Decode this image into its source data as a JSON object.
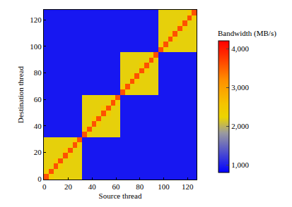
{
  "chart_data": {
    "type": "heatmap",
    "x_label": "Source thread",
    "y_label": "Destination thread",
    "x": [
      1.5,
      5.5,
      9.5,
      13.5,
      17.5,
      21.5,
      25.5,
      29.5,
      33.5,
      37.5,
      41.5,
      45.5,
      49.5,
      53.5,
      57.5,
      61.5,
      65.5,
      69.5,
      73.5,
      77.5,
      81.5,
      85.5,
      89.5,
      93.5,
      97.5,
      101.5,
      105.5,
      109.5,
      113.5,
      117.5,
      121.5,
      125.5
    ],
    "y": [
      1.5,
      5.5,
      9.5,
      13.5,
      17.5,
      21.5,
      25.5,
      29.5,
      33.5,
      37.5,
      41.5,
      45.5,
      49.5,
      53.5,
      57.5,
      61.5,
      65.5,
      69.5,
      73.5,
      77.5,
      81.5,
      85.5,
      89.5,
      93.5,
      97.5,
      101.5,
      105.5,
      109.5,
      113.5,
      117.5,
      121.5,
      125.5
    ],
    "xlim": [
      -0.5,
      127.5
    ],
    "ylim": [
      -0.5,
      127.5
    ],
    "xticks": [
      0,
      20,
      40,
      60,
      80,
      100,
      120
    ],
    "yticks": [
      0,
      20,
      40,
      60,
      80,
      100,
      120
    ],
    "colorbar": {
      "title": "Bandwidth (MB/s)",
      "range": [
        800,
        4200
      ],
      "ticks": [
        {
          "value": 1000,
          "label": "1,000"
        },
        {
          "value": 2000,
          "label": "2,000"
        },
        {
          "value": 3000,
          "label": "3,000"
        },
        {
          "value": 4000,
          "label": "4,000"
        }
      ]
    },
    "z": [
      [
        3600,
        2400,
        2200,
        2200,
        2200,
        2200,
        2200,
        2200,
        950,
        950,
        950,
        950,
        950,
        950,
        950,
        950,
        950,
        950,
        950,
        950,
        950,
        950,
        950,
        950,
        950,
        950,
        950,
        950,
        950,
        950,
        950,
        950
      ],
      [
        2400,
        3600,
        2200,
        2200,
        2200,
        2200,
        2200,
        2200,
        950,
        950,
        950,
        950,
        950,
        950,
        950,
        950,
        950,
        950,
        950,
        950,
        950,
        950,
        950,
        950,
        950,
        950,
        950,
        950,
        950,
        950,
        950,
        950
      ],
      [
        2200,
        2200,
        3600,
        2400,
        2200,
        2200,
        2200,
        2200,
        950,
        950,
        950,
        950,
        950,
        950,
        950,
        950,
        950,
        950,
        950,
        950,
        950,
        950,
        950,
        950,
        950,
        950,
        950,
        950,
        950,
        950,
        950,
        950
      ],
      [
        2200,
        2200,
        2400,
        3600,
        2200,
        2200,
        2200,
        2200,
        950,
        950,
        950,
        950,
        950,
        950,
        950,
        950,
        950,
        950,
        950,
        950,
        950,
        950,
        950,
        950,
        950,
        950,
        950,
        950,
        950,
        950,
        950,
        950
      ],
      [
        2200,
        2200,
        2200,
        2200,
        3600,
        2400,
        2200,
        2200,
        950,
        950,
        950,
        950,
        950,
        950,
        950,
        950,
        950,
        950,
        950,
        950,
        950,
        950,
        950,
        950,
        950,
        950,
        950,
        950,
        950,
        950,
        950,
        950
      ],
      [
        2200,
        2200,
        2200,
        2200,
        2400,
        3600,
        2200,
        2200,
        950,
        950,
        950,
        950,
        950,
        950,
        950,
        950,
        950,
        950,
        950,
        950,
        950,
        950,
        950,
        950,
        950,
        950,
        950,
        950,
        950,
        950,
        950,
        950
      ],
      [
        2200,
        2200,
        2200,
        2200,
        2200,
        2200,
        3600,
        2400,
        950,
        950,
        950,
        950,
        950,
        950,
        950,
        950,
        950,
        950,
        950,
        950,
        950,
        950,
        950,
        950,
        950,
        950,
        950,
        950,
        950,
        950,
        950,
        950
      ],
      [
        2200,
        2200,
        2200,
        2200,
        2200,
        2200,
        2400,
        3600,
        950,
        950,
        950,
        950,
        950,
        950,
        950,
        950,
        950,
        950,
        950,
        950,
        950,
        950,
        950,
        950,
        950,
        950,
        950,
        950,
        950,
        950,
        950,
        950
      ],
      [
        950,
        950,
        950,
        950,
        950,
        950,
        950,
        950,
        3600,
        2400,
        2200,
        2200,
        2200,
        2200,
        2200,
        2200,
        950,
        950,
        950,
        950,
        950,
        950,
        950,
        950,
        950,
        950,
        950,
        950,
        950,
        950,
        950,
        950
      ],
      [
        950,
        950,
        950,
        950,
        950,
        950,
        950,
        950,
        2400,
        3600,
        2200,
        2200,
        2200,
        2200,
        2200,
        2200,
        950,
        950,
        950,
        950,
        950,
        950,
        950,
        950,
        950,
        950,
        950,
        950,
        950,
        950,
        950,
        950
      ],
      [
        950,
        950,
        950,
        950,
        950,
        950,
        950,
        950,
        2200,
        2200,
        3600,
        2400,
        2200,
        2200,
        2200,
        2200,
        950,
        950,
        950,
        950,
        950,
        950,
        950,
        950,
        950,
        950,
        950,
        950,
        950,
        950,
        950,
        950
      ],
      [
        950,
        950,
        950,
        950,
        950,
        950,
        950,
        950,
        2200,
        2200,
        2400,
        3600,
        2200,
        2200,
        2200,
        2200,
        950,
        950,
        950,
        950,
        950,
        950,
        950,
        950,
        950,
        950,
        950,
        950,
        950,
        950,
        950,
        950
      ],
      [
        950,
        950,
        950,
        950,
        950,
        950,
        950,
        950,
        2200,
        2200,
        2200,
        2200,
        3600,
        2400,
        2200,
        2200,
        950,
        950,
        950,
        950,
        950,
        950,
        950,
        950,
        950,
        950,
        950,
        950,
        950,
        950,
        950,
        950
      ],
      [
        950,
        950,
        950,
        950,
        950,
        950,
        950,
        950,
        2200,
        2200,
        2200,
        2200,
        2400,
        3600,
        2200,
        2200,
        950,
        950,
        950,
        950,
        950,
        950,
        950,
        950,
        950,
        950,
        950,
        950,
        950,
        950,
        950,
        950
      ],
      [
        950,
        950,
        950,
        950,
        950,
        950,
        950,
        950,
        2200,
        2200,
        2200,
        2200,
        2200,
        2200,
        3600,
        2400,
        950,
        950,
        950,
        950,
        950,
        950,
        950,
        950,
        950,
        950,
        950,
        950,
        950,
        950,
        950,
        950
      ],
      [
        950,
        950,
        950,
        950,
        950,
        950,
        950,
        950,
        2200,
        2200,
        2200,
        2200,
        2200,
        2200,
        2400,
        3600,
        950,
        950,
        950,
        950,
        950,
        950,
        950,
        950,
        950,
        950,
        950,
        950,
        950,
        950,
        950,
        950
      ],
      [
        950,
        950,
        950,
        950,
        950,
        950,
        950,
        950,
        950,
        950,
        950,
        950,
        950,
        950,
        950,
        950,
        3600,
        2400,
        2200,
        2200,
        2200,
        2200,
        2200,
        2200,
        950,
        950,
        950,
        950,
        950,
        950,
        950,
        950
      ],
      [
        950,
        950,
        950,
        950,
        950,
        950,
        950,
        950,
        950,
        950,
        950,
        950,
        950,
        950,
        950,
        950,
        2400,
        3600,
        2200,
        2200,
        2200,
        2200,
        2200,
        2200,
        950,
        950,
        950,
        950,
        950,
        950,
        950,
        950
      ],
      [
        950,
        950,
        950,
        950,
        950,
        950,
        950,
        950,
        950,
        950,
        950,
        950,
        950,
        950,
        950,
        950,
        2200,
        2200,
        3600,
        2400,
        2200,
        2200,
        2200,
        2200,
        950,
        950,
        950,
        950,
        950,
        950,
        950,
        950
      ],
      [
        950,
        950,
        950,
        950,
        950,
        950,
        950,
        950,
        950,
        950,
        950,
        950,
        950,
        950,
        950,
        950,
        2200,
        2200,
        2400,
        3600,
        2200,
        2200,
        2200,
        2200,
        950,
        950,
        950,
        950,
        950,
        950,
        950,
        950
      ],
      [
        950,
        950,
        950,
        950,
        950,
        950,
        950,
        950,
        950,
        950,
        950,
        950,
        950,
        950,
        950,
        950,
        2200,
        2200,
        2200,
        2200,
        3600,
        2400,
        2200,
        2200,
        950,
        950,
        950,
        950,
        950,
        950,
        950,
        950
      ],
      [
        950,
        950,
        950,
        950,
        950,
        950,
        950,
        950,
        950,
        950,
        950,
        950,
        950,
        950,
        950,
        950,
        2200,
        2200,
        2200,
        2200,
        2400,
        3600,
        2200,
        2200,
        950,
        950,
        950,
        950,
        950,
        950,
        950,
        950
      ],
      [
        950,
        950,
        950,
        950,
        950,
        950,
        950,
        950,
        950,
        950,
        950,
        950,
        950,
        950,
        950,
        950,
        2200,
        2200,
        2200,
        2200,
        2200,
        2200,
        3600,
        2400,
        950,
        950,
        950,
        950,
        950,
        950,
        950,
        950
      ],
      [
        950,
        950,
        950,
        950,
        950,
        950,
        950,
        950,
        950,
        950,
        950,
        950,
        950,
        950,
        950,
        950,
        2200,
        2200,
        2200,
        2200,
        2200,
        2200,
        2400,
        3600,
        950,
        950,
        950,
        950,
        950,
        950,
        950,
        950
      ],
      [
        950,
        950,
        950,
        950,
        950,
        950,
        950,
        950,
        950,
        950,
        950,
        950,
        950,
        950,
        950,
        950,
        950,
        950,
        950,
        950,
        950,
        950,
        950,
        950,
        3600,
        2400,
        2200,
        2200,
        2200,
        2200,
        2200,
        2200
      ],
      [
        950,
        950,
        950,
        950,
        950,
        950,
        950,
        950,
        950,
        950,
        950,
        950,
        950,
        950,
        950,
        950,
        950,
        950,
        950,
        950,
        950,
        950,
        950,
        950,
        2400,
        3600,
        2200,
        2200,
        2200,
        2200,
        2200,
        2200
      ],
      [
        950,
        950,
        950,
        950,
        950,
        950,
        950,
        950,
        950,
        950,
        950,
        950,
        950,
        950,
        950,
        950,
        950,
        950,
        950,
        950,
        950,
        950,
        950,
        950,
        2200,
        2200,
        3600,
        2400,
        2200,
        2200,
        2200,
        2200
      ],
      [
        950,
        950,
        950,
        950,
        950,
        950,
        950,
        950,
        950,
        950,
        950,
        950,
        950,
        950,
        950,
        950,
        950,
        950,
        950,
        950,
        950,
        950,
        950,
        950,
        2200,
        2200,
        2400,
        3600,
        2200,
        2200,
        2200,
        2200
      ],
      [
        950,
        950,
        950,
        950,
        950,
        950,
        950,
        950,
        950,
        950,
        950,
        950,
        950,
        950,
        950,
        950,
        950,
        950,
        950,
        950,
        950,
        950,
        950,
        950,
        2200,
        2200,
        2200,
        2200,
        3600,
        2400,
        2200,
        2200
      ],
      [
        950,
        950,
        950,
        950,
        950,
        950,
        950,
        950,
        950,
        950,
        950,
        950,
        950,
        950,
        950,
        950,
        950,
        950,
        950,
        950,
        950,
        950,
        950,
        950,
        2200,
        2200,
        2200,
        2200,
        2400,
        3600,
        2200,
        2200
      ],
      [
        950,
        950,
        950,
        950,
        950,
        950,
        950,
        950,
        950,
        950,
        950,
        950,
        950,
        950,
        950,
        950,
        950,
        950,
        950,
        950,
        950,
        950,
        950,
        950,
        2200,
        2200,
        2200,
        2200,
        2200,
        2200,
        3600,
        2400
      ],
      [
        950,
        950,
        950,
        950,
        950,
        950,
        950,
        950,
        950,
        950,
        950,
        950,
        950,
        950,
        950,
        950,
        950,
        950,
        950,
        950,
        950,
        950,
        950,
        950,
        2200,
        2200,
        2200,
        2200,
        2200,
        2200,
        2400,
        3600
      ]
    ]
  }
}
